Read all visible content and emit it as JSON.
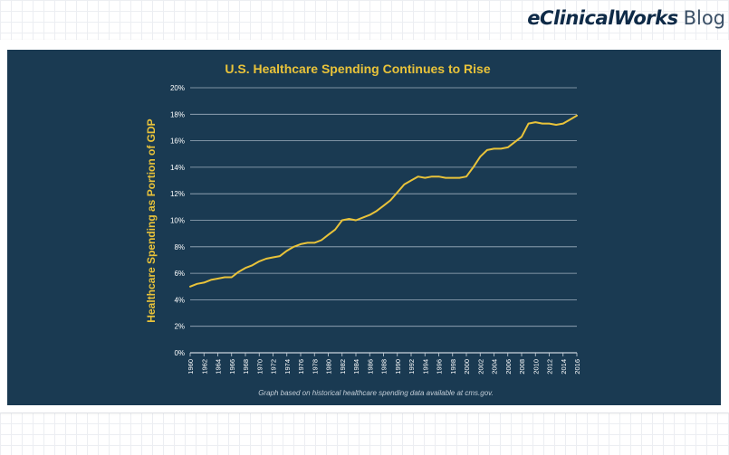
{
  "brand": {
    "main": "eClinicalWorks",
    "sub": "Blog"
  },
  "chart_data": {
    "type": "line",
    "title": "U.S. Healthcare Spending Continues to Rise",
    "ylabel": "Healthcare Spending as Portion of GDP",
    "xlabel": "",
    "footnote": "Graph based on historical healthcare spending data available at cms.gov.",
    "ylim": [
      0,
      20
    ],
    "y_ticks": [
      "0%",
      "2%",
      "4%",
      "6%",
      "8%",
      "10%",
      "12%",
      "14%",
      "16%",
      "18%",
      "20%"
    ],
    "x_ticks": [
      "1960",
      "1962",
      "1964",
      "1966",
      "1968",
      "1970",
      "1972",
      "1974",
      "1976",
      "1978",
      "1980",
      "1982",
      "1984",
      "1986",
      "1988",
      "1990",
      "1992",
      "1994",
      "1996",
      "1998",
      "2000",
      "2002",
      "2004",
      "2006",
      "2008",
      "2010",
      "2012",
      "2014",
      "2016"
    ],
    "grid": true,
    "line_color": "#e9c33a",
    "series": [
      {
        "x": [
          1960,
          1961,
          1962,
          1963,
          1964,
          1965,
          1966,
          1967,
          1968,
          1969,
          1970,
          1971,
          1972,
          1973,
          1974,
          1975,
          1976,
          1977,
          1978,
          1979,
          1980,
          1981,
          1982,
          1983,
          1984,
          1985,
          1986,
          1987,
          1988,
          1989,
          1990,
          1991,
          1992,
          1993,
          1994,
          1995,
          1996,
          1997,
          1998,
          1999,
          2000,
          2001,
          2002,
          2003,
          2004,
          2005,
          2006,
          2007,
          2008,
          2009,
          2010,
          2011,
          2012,
          2013,
          2014,
          2015,
          2016
        ],
        "values": [
          5.0,
          5.2,
          5.3,
          5.5,
          5.6,
          5.7,
          5.7,
          6.1,
          6.4,
          6.6,
          6.9,
          7.1,
          7.2,
          7.3,
          7.7,
          8.0,
          8.2,
          8.3,
          8.3,
          8.5,
          8.9,
          9.3,
          10.0,
          10.1,
          10.0,
          10.2,
          10.4,
          10.7,
          11.1,
          11.5,
          12.1,
          12.7,
          13.0,
          13.3,
          13.2,
          13.3,
          13.3,
          13.2,
          13.2,
          13.2,
          13.3,
          14.0,
          14.8,
          15.3,
          15.4,
          15.4,
          15.5,
          15.9,
          16.3,
          17.3,
          17.4,
          17.3,
          17.3,
          17.2,
          17.3,
          17.6,
          17.9
        ]
      }
    ]
  }
}
